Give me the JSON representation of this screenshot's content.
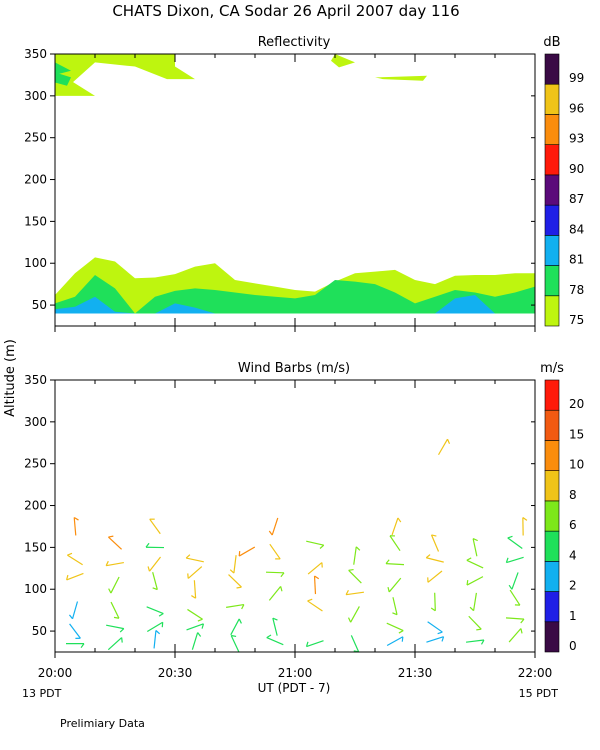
{
  "title": "CHATS Dixon, CA  Sodar  26 April 2007  day 116",
  "colors": {
    "scale": [
      "#3a0a45",
      "#5b0a7a",
      "#1f1fe6",
      "#12b0f0",
      "#1fe05a",
      "#bef50f",
      "#f0c418",
      "#fb8d0d",
      "#ff1a0a"
    ]
  },
  "footer": {
    "xlabel": "UT  (PDT - 7)",
    "left_date": "13 PDT",
    "right_date": "15 PDT",
    "note": "Prelimiary Data"
  },
  "chart_data": [
    {
      "type": "heatmap",
      "title": "Reflectivity",
      "ylabel": "Altitude (m)",
      "xlabel": "",
      "x_ticks": [
        "20:00",
        "20:30",
        "21:00",
        "21:30",
        "22:00"
      ],
      "x_range_minutes": [
        0,
        120
      ],
      "ylim": [
        25,
        350
      ],
      "y_ticks": [
        50,
        100,
        150,
        200,
        250,
        300,
        350
      ],
      "colorbar": {
        "unit": "dB",
        "labels": [
          "75",
          "78",
          "81",
          "84",
          "87",
          "90",
          "93",
          "96",
          "99"
        ],
        "colors": [
          "#bef50f",
          "#1fe05a",
          "#12b0f0",
          "#1f1fe6",
          "#5b0a7a",
          "#ff1a0a",
          "#fb8d0d",
          "#f0c418",
          "#3a0a45"
        ]
      },
      "x": [
        0,
        5,
        10,
        15,
        20,
        25,
        30,
        35,
        40,
        45,
        50,
        55,
        60,
        65,
        70,
        75,
        80,
        85,
        90,
        95,
        100,
        105,
        110,
        115,
        120
      ],
      "layers": [
        {
          "color_index": 0,
          "bottom": 40,
          "top": [
            62,
            88,
            107,
            102,
            82,
            83,
            87,
            96,
            100,
            80,
            76,
            72,
            68,
            66,
            78,
            88,
            90,
            92,
            80,
            75,
            85,
            86,
            86,
            88,
            88
          ]
        },
        {
          "color_index": 1,
          "bottom": 40,
          "top": [
            52,
            60,
            86,
            70,
            40,
            60,
            67,
            70,
            68,
            65,
            62,
            60,
            58,
            62,
            80,
            78,
            75,
            65,
            52,
            60,
            68,
            65,
            60,
            65,
            72
          ]
        },
        {
          "color_index": 2,
          "bottom": 40,
          "top": [
            45,
            48,
            60,
            42,
            40,
            40,
            52,
            47,
            40,
            40,
            40,
            40,
            40,
            40,
            40,
            40,
            40,
            40,
            40,
            40,
            58,
            62,
            40,
            40,
            40
          ]
        }
      ],
      "upper_patches": [
        {
          "color_index": 0,
          "points": [
            [
              0,
              350
            ],
            [
              30,
              350
            ],
            [
              30,
              335
            ],
            [
              35,
              320
            ],
            [
              28,
              320
            ],
            [
              20,
              335
            ],
            [
              10,
              340
            ],
            [
              3,
              310
            ],
            [
              0,
              305
            ]
          ]
        },
        {
          "color_index": 0,
          "points": [
            [
              0,
              330
            ],
            [
              10,
              300
            ],
            [
              0,
              300
            ]
          ]
        },
        {
          "color_index": 1,
          "points": [
            [
              0,
              328
            ],
            [
              4,
              322
            ],
            [
              3,
              312
            ],
            [
              0,
              316
            ]
          ]
        },
        {
          "color_index": 1,
          "points": [
            [
              0,
              340
            ],
            [
              4,
              330
            ],
            [
              0,
              325
            ]
          ]
        },
        {
          "color_index": 0,
          "points": [
            [
              70,
              350
            ],
            [
              75,
              340
            ],
            [
              71,
              334
            ],
            [
              69,
              342
            ]
          ]
        },
        {
          "color_index": 0,
          "points": [
            [
              80,
              322
            ],
            [
              93,
              324
            ],
            [
              92,
              318
            ],
            [
              82,
              320
            ]
          ]
        }
      ]
    },
    {
      "type": "scatter",
      "title": "Wind Barbs (m/s)",
      "ylabel": "Altitude (m)",
      "xlabel": "UT  (PDT - 7)",
      "x_ticks": [
        "20:00",
        "20:30",
        "21:00",
        "21:30",
        "22:00"
      ],
      "x_range_minutes": [
        0,
        120
      ],
      "ylim": [
        25,
        350
      ],
      "y_ticks": [
        50,
        100,
        150,
        200,
        250,
        300,
        350
      ],
      "colorbar": {
        "unit": "m/s",
        "labels": [
          "0",
          "1",
          "2",
          "4",
          "6",
          "8",
          "10",
          "15",
          "20"
        ],
        "colors": [
          "#3a0a45",
          "#1f1fe6",
          "#12b0f0",
          "#1fe05a",
          "#7de81a",
          "#f0c418",
          "#fb8d0d",
          "#f25a12",
          "#ff1a0a"
        ]
      },
      "barbs": [
        {
          "x": 5,
          "y": 35,
          "speed": 4
        },
        {
          "x": 5,
          "y": 50,
          "speed": 2
        },
        {
          "x": 5,
          "y": 75,
          "speed": 3
        },
        {
          "x": 5,
          "y": 115,
          "speed": 9
        },
        {
          "x": 5,
          "y": 135,
          "speed": 9
        },
        {
          "x": 5,
          "y": 175,
          "speed": 10
        },
        {
          "x": 15,
          "y": 35,
          "speed": 4
        },
        {
          "x": 15,
          "y": 55,
          "speed": 4
        },
        {
          "x": 15,
          "y": 75,
          "speed": 6
        },
        {
          "x": 15,
          "y": 105,
          "speed": 6
        },
        {
          "x": 15,
          "y": 130,
          "speed": 9
        },
        {
          "x": 15,
          "y": 155,
          "speed": 10
        },
        {
          "x": 25,
          "y": 40,
          "speed": 2
        },
        {
          "x": 25,
          "y": 55,
          "speed": 4
        },
        {
          "x": 25,
          "y": 75,
          "speed": 4
        },
        {
          "x": 25,
          "y": 110,
          "speed": 6
        },
        {
          "x": 25,
          "y": 130,
          "speed": 9
        },
        {
          "x": 25,
          "y": 150,
          "speed": 5
        },
        {
          "x": 25,
          "y": 175,
          "speed": 9
        },
        {
          "x": 35,
          "y": 38,
          "speed": 4
        },
        {
          "x": 35,
          "y": 55,
          "speed": 4
        },
        {
          "x": 35,
          "y": 70,
          "speed": 6
        },
        {
          "x": 35,
          "y": 100,
          "speed": 9
        },
        {
          "x": 35,
          "y": 120,
          "speed": 9
        },
        {
          "x": 35,
          "y": 135,
          "speed": 9
        },
        {
          "x": 45,
          "y": 35,
          "speed": 4
        },
        {
          "x": 45,
          "y": 55,
          "speed": 4
        },
        {
          "x": 45,
          "y": 80,
          "speed": 6
        },
        {
          "x": 45,
          "y": 110,
          "speed": 9
        },
        {
          "x": 45,
          "y": 130,
          "speed": 9
        },
        {
          "x": 48,
          "y": 145,
          "speed": 10
        },
        {
          "x": 55,
          "y": 38,
          "speed": 4
        },
        {
          "x": 55,
          "y": 55,
          "speed": 4
        },
        {
          "x": 55,
          "y": 95,
          "speed": 6
        },
        {
          "x": 55,
          "y": 120,
          "speed": 6
        },
        {
          "x": 55,
          "y": 145,
          "speed": 9
        },
        {
          "x": 55,
          "y": 175,
          "speed": 10
        },
        {
          "x": 65,
          "y": 35,
          "speed": 4
        },
        {
          "x": 65,
          "y": 80,
          "speed": 9
        },
        {
          "x": 65,
          "y": 105,
          "speed": 10
        },
        {
          "x": 65,
          "y": 125,
          "speed": 9
        },
        {
          "x": 65,
          "y": 155,
          "speed": 6
        },
        {
          "x": 75,
          "y": 35,
          "speed": 4
        },
        {
          "x": 75,
          "y": 70,
          "speed": 6
        },
        {
          "x": 75,
          "y": 95,
          "speed": 9
        },
        {
          "x": 75,
          "y": 115,
          "speed": 6
        },
        {
          "x": 75,
          "y": 140,
          "speed": 6
        },
        {
          "x": 85,
          "y": 38,
          "speed": 3
        },
        {
          "x": 85,
          "y": 55,
          "speed": 6
        },
        {
          "x": 85,
          "y": 80,
          "speed": 6
        },
        {
          "x": 85,
          "y": 105,
          "speed": 6
        },
        {
          "x": 85,
          "y": 130,
          "speed": 6
        },
        {
          "x": 85,
          "y": 155,
          "speed": 6
        },
        {
          "x": 85,
          "y": 175,
          "speed": 9
        },
        {
          "x": 95,
          "y": 40,
          "speed": 2
        },
        {
          "x": 95,
          "y": 55,
          "speed": 2
        },
        {
          "x": 95,
          "y": 85,
          "speed": 6
        },
        {
          "x": 95,
          "y": 115,
          "speed": 9
        },
        {
          "x": 95,
          "y": 135,
          "speed": 9
        },
        {
          "x": 95,
          "y": 155,
          "speed": 9
        },
        {
          "x": 97,
          "y": 270,
          "speed": 9
        },
        {
          "x": 105,
          "y": 38,
          "speed": 4
        },
        {
          "x": 105,
          "y": 60,
          "speed": 6
        },
        {
          "x": 105,
          "y": 85,
          "speed": 6
        },
        {
          "x": 105,
          "y": 110,
          "speed": 6
        },
        {
          "x": 105,
          "y": 130,
          "speed": 6
        },
        {
          "x": 105,
          "y": 150,
          "speed": 6
        },
        {
          "x": 115,
          "y": 45,
          "speed": 6
        },
        {
          "x": 115,
          "y": 65,
          "speed": 6
        },
        {
          "x": 115,
          "y": 90,
          "speed": 6
        },
        {
          "x": 115,
          "y": 110,
          "speed": 4
        },
        {
          "x": 115,
          "y": 135,
          "speed": 4
        },
        {
          "x": 115,
          "y": 155,
          "speed": 4
        },
        {
          "x": 117,
          "y": 175,
          "speed": 9
        }
      ]
    }
  ]
}
